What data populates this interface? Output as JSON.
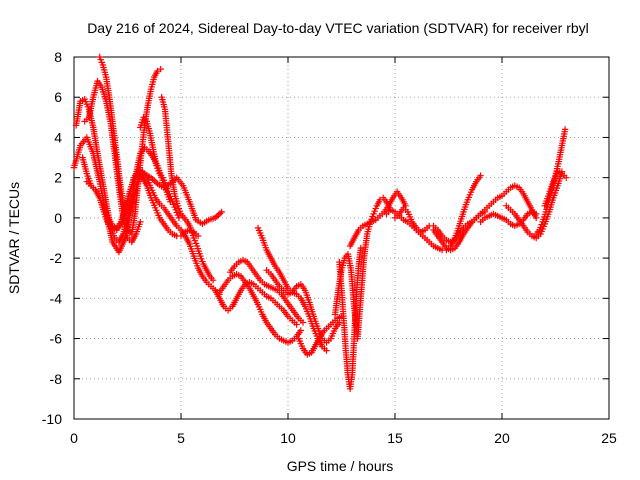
{
  "chart_data": {
    "type": "scatter",
    "title": "Day 216 of 2024, Sidereal Day-to-day VTEC variation (SDTVAR) for receiver rbyl",
    "xlabel": "GPS time / hours",
    "ylabel": "SDTVAR / TECUs",
    "xlim": [
      0,
      25
    ],
    "ylim": [
      -10,
      8
    ],
    "xticks": [
      0,
      5,
      10,
      15,
      20,
      25
    ],
    "yticks": [
      -10,
      -8,
      -6,
      -4,
      -2,
      0,
      2,
      4,
      6,
      8
    ],
    "grid": true,
    "marker": "plus",
    "color": "#ff0000",
    "series": [
      {
        "name": "track-1",
        "x": [
          0.0,
          0.3,
          0.6,
          0.9,
          1.2,
          1.5,
          1.8,
          2.1,
          2.4,
          2.7,
          3.0,
          3.3,
          3.6,
          3.9,
          4.2,
          4.5,
          4.8,
          5.1,
          5.4,
          5.7,
          6.0,
          6.3,
          6.6,
          6.9
        ],
        "y": [
          2.5,
          3.6,
          4.0,
          3.2,
          1.8,
          0.2,
          -1.2,
          -1.7,
          -1.0,
          0.6,
          1.8,
          2.2,
          2.0,
          1.7,
          1.5,
          1.7,
          2.0,
          1.6,
          0.8,
          -0.1,
          -0.3,
          -0.1,
          0.0,
          0.3
        ]
      },
      {
        "name": "track-2",
        "x": [
          0.1,
          0.3,
          0.5,
          0.7,
          0.9,
          1.1,
          1.3,
          1.5,
          1.7,
          1.9,
          2.1,
          2.3,
          2.5,
          2.7,
          2.9,
          3.1,
          3.3,
          3.5,
          3.7,
          3.9,
          4.1,
          4.3,
          4.5
        ],
        "y": [
          4.6,
          5.8,
          5.9,
          5.4,
          4.5,
          3.2,
          2.0,
          0.8,
          -0.4,
          -1.0,
          -1.2,
          -0.8,
          0.0,
          1.0,
          2.2,
          3.2,
          3.5,
          3.3,
          3.0,
          2.6,
          2.0,
          1.4,
          0.8
        ]
      },
      {
        "name": "track-3",
        "x": [
          0.4,
          0.6,
          0.8,
          1.0,
          1.2,
          1.4,
          1.6,
          1.8,
          2.0,
          2.2,
          2.4,
          2.6,
          2.8,
          3.0,
          3.2,
          3.4,
          3.6,
          3.8,
          4.0,
          4.2,
          4.4,
          4.6,
          4.8,
          5.0,
          5.2,
          5.4,
          5.6,
          5.8,
          6.0,
          6.2,
          6.4,
          6.6,
          6.8
        ],
        "y": [
          3.0,
          2.2,
          1.6,
          1.4,
          1.0,
          0.3,
          -0.3,
          -0.5,
          -0.6,
          -0.3,
          0.4,
          1.2,
          2.0,
          2.4,
          2.3,
          2.0,
          1.5,
          1.0,
          0.7,
          0.5,
          0.2,
          -0.1,
          -0.4,
          -0.6,
          -0.9,
          -1.3,
          -1.9,
          -2.5,
          -2.9,
          -3.2,
          -3.4,
          -3.6,
          -3.8
        ]
      },
      {
        "name": "track-4",
        "x": [
          0.6,
          0.8,
          1.0,
          1.2,
          1.4,
          1.6,
          1.8,
          2.0,
          2.2,
          2.4,
          2.6,
          2.8,
          3.0,
          3.2,
          3.4,
          3.6,
          3.8,
          4.0,
          4.2,
          4.4,
          4.6,
          4.8,
          5.0,
          5.2,
          5.4,
          5.6,
          5.8
        ],
        "y": [
          1.8,
          1.6,
          1.4,
          1.0,
          0.5,
          0.0,
          -0.4,
          -0.5,
          -0.2,
          0.5,
          1.3,
          1.9,
          2.2,
          2.0,
          1.6,
          1.0,
          0.5,
          0.0,
          -0.3,
          -0.6,
          -0.8,
          -0.9,
          -0.9,
          -0.7,
          -0.6,
          -0.7,
          -0.9
        ]
      },
      {
        "name": "track-5",
        "x": [
          0.5,
          0.7,
          0.9,
          1.1,
          1.3,
          1.5,
          1.7,
          1.9,
          2.1,
          2.3,
          2.5,
          2.7,
          2.9,
          3.1
        ],
        "y": [
          4.8,
          5.0,
          6.0,
          6.8,
          6.5,
          5.8,
          4.8,
          3.2,
          1.5,
          0.0,
          -1.0,
          -1.2,
          -0.8,
          -0.2
        ]
      },
      {
        "name": "track-6",
        "x": [
          1.2,
          1.35,
          1.5,
          1.65,
          1.8,
          1.95,
          2.1,
          2.25,
          2.4,
          2.55,
          2.7,
          2.85,
          3.0,
          3.15,
          3.3,
          3.45,
          3.6,
          3.75,
          3.9,
          4.05
        ],
        "y": [
          8.0,
          7.6,
          7.0,
          6.0,
          4.8,
          3.5,
          2.2,
          1.0,
          0.0,
          -0.6,
          -0.8,
          0.2,
          1.8,
          3.2,
          4.6,
          5.6,
          6.4,
          7.0,
          7.3,
          7.4
        ]
      },
      {
        "name": "track-7",
        "x": [
          3.1,
          3.25,
          3.4,
          3.55,
          3.7,
          3.85,
          4.0,
          4.15,
          4.3,
          4.45,
          4.6,
          4.75,
          4.9
        ],
        "y": [
          4.5,
          5.0,
          4.8,
          4.2,
          3.4,
          2.6,
          2.2,
          2.0,
          1.6,
          1.2,
          0.8,
          0.4,
          0.0
        ]
      },
      {
        "name": "track-8",
        "x": [
          4.1,
          4.25,
          4.4,
          4.55,
          4.7,
          4.85,
          5.0,
          5.15,
          5.3,
          5.45,
          5.6,
          5.75,
          5.9,
          6.05,
          6.2,
          6.35,
          6.5
        ],
        "y": [
          6.0,
          5.4,
          3.8,
          2.2,
          1.2,
          0.6,
          0.2,
          0.0,
          -0.2,
          -0.5,
          -1.0,
          -1.4,
          -1.9,
          -2.3,
          -2.6,
          -2.9,
          -3.1
        ]
      },
      {
        "name": "track-9",
        "x": [
          6.8,
          7.0,
          7.2,
          7.4,
          7.6,
          7.8,
          8.0,
          8.2,
          8.4,
          8.6,
          8.8,
          9.0,
          9.2,
          9.4,
          9.6,
          9.8,
          10.0,
          10.2,
          10.4,
          10.6
        ],
        "y": [
          -3.7,
          -3.4,
          -3.1,
          -2.9,
          -2.8,
          -2.9,
          -3.2,
          -3.5,
          -3.9,
          -4.3,
          -4.8,
          -5.2,
          -5.5,
          -5.8,
          -6.0,
          -6.1,
          -6.2,
          -6.1,
          -5.9,
          -5.6
        ]
      },
      {
        "name": "track-10",
        "x": [
          6.6,
          6.8,
          7.0,
          7.2,
          7.4,
          7.6,
          7.8,
          8.0,
          8.2,
          8.4,
          8.6,
          8.8,
          9.0,
          9.2,
          9.4,
          9.6,
          9.8,
          10.0,
          10.2,
          10.4
        ],
        "y": [
          -3.6,
          -4.0,
          -4.4,
          -4.6,
          -4.4,
          -4.0,
          -3.6,
          -3.3,
          -3.2,
          -3.3,
          -3.5,
          -3.7,
          -3.9,
          -4.0,
          -4.2,
          -4.4,
          -4.6,
          -4.9,
          -5.1,
          -5.3
        ]
      },
      {
        "name": "track-11",
        "x": [
          7.3,
          7.5,
          7.7,
          7.9,
          8.1,
          8.3,
          8.5,
          8.7,
          8.9,
          9.1,
          9.3,
          9.5,
          9.7,
          9.9,
          10.1,
          10.3,
          10.5,
          10.7
        ],
        "y": [
          -2.7,
          -2.4,
          -2.2,
          -2.1,
          -2.2,
          -2.5,
          -2.8,
          -3.1,
          -3.3,
          -3.4,
          -3.5,
          -3.6,
          -3.8,
          -4.1,
          -4.4,
          -4.7,
          -5.0,
          -5.2
        ]
      },
      {
        "name": "track-12",
        "x": [
          8.6,
          8.8,
          9.0,
          9.2,
          9.4,
          9.6,
          9.8,
          10.0,
          10.2,
          10.4,
          10.6,
          10.8,
          11.0,
          11.2,
          11.4,
          11.6,
          11.8
        ],
        "y": [
          -0.5,
          -1.0,
          -1.6,
          -2.0,
          -2.4,
          -2.7,
          -3.1,
          -3.5,
          -3.7,
          -3.8,
          -4.0,
          -4.4,
          -4.9,
          -5.5,
          -6.0,
          -6.4,
          -6.6
        ]
      },
      {
        "name": "track-13",
        "x": [
          9.0,
          9.2,
          9.4,
          9.6,
          9.8,
          10.0,
          10.2,
          10.4,
          10.6,
          10.8,
          11.0,
          11.2,
          11.4,
          11.6,
          11.8,
          12.0,
          12.2,
          12.4
        ],
        "y": [
          -2.6,
          -2.8,
          -3.1,
          -3.4,
          -3.6,
          -3.8,
          -3.7,
          -3.4,
          -3.3,
          -3.6,
          -4.2,
          -4.9,
          -5.5,
          -6.0,
          -6.2,
          -6.0,
          -5.5,
          -5.2
        ]
      },
      {
        "name": "track-14",
        "x": [
          10.5,
          10.7,
          10.9,
          11.1,
          11.3,
          11.5,
          11.7,
          11.9,
          12.1,
          12.3,
          12.5
        ],
        "y": [
          -6.0,
          -6.5,
          -6.8,
          -6.7,
          -6.3,
          -5.9,
          -5.6,
          -5.4,
          -5.2,
          -5.0,
          -4.9
        ]
      },
      {
        "name": "track-15",
        "x": [
          12.2,
          12.35,
          12.5,
          12.65,
          12.8,
          12.95,
          13.1,
          13.25,
          13.4,
          13.55,
          13.7,
          13.85,
          14.0,
          14.15,
          14.3,
          14.45,
          14.6,
          14.75
        ],
        "y": [
          -4.8,
          -3.6,
          -2.6,
          -2.0,
          -1.8,
          -2.6,
          -4.5,
          -6.0,
          -4.0,
          -2.0,
          -0.8,
          -0.2,
          0.2,
          0.6,
          0.9,
          1.0,
          0.8,
          0.5
        ]
      },
      {
        "name": "track-16",
        "x": [
          12.4,
          12.5,
          12.6,
          12.7,
          12.8,
          12.9,
          13.0,
          13.1,
          13.2,
          13.3,
          13.4
        ],
        "y": [
          -2.2,
          -3.5,
          -5.0,
          -6.6,
          -7.8,
          -8.5,
          -7.8,
          -5.8,
          -3.8,
          -2.4,
          -1.5
        ]
      },
      {
        "name": "track-17",
        "x": [
          12.9,
          13.1,
          13.3,
          13.5,
          13.7,
          13.9,
          14.1,
          14.3,
          14.5,
          14.7,
          14.9,
          15.1,
          15.3,
          15.5
        ],
        "y": [
          -1.4,
          -1.0,
          -0.6,
          -0.4,
          -0.3,
          -0.2,
          -0.1,
          0.1,
          0.3,
          0.6,
          1.0,
          1.3,
          1.0,
          0.6
        ]
      },
      {
        "name": "track-18",
        "x": [
          14.6,
          14.8,
          15.0,
          15.2,
          15.4,
          15.6,
          15.8,
          16.0,
          16.2,
          16.4,
          16.6,
          16.8,
          17.0,
          17.2,
          17.4,
          17.6,
          17.8,
          18.0,
          18.2,
          18.4,
          18.6,
          18.8,
          19.0
        ],
        "y": [
          0.2,
          0.4,
          0.3,
          0.1,
          -0.1,
          -0.2,
          -0.4,
          -0.6,
          -0.8,
          -1.0,
          -1.2,
          -1.4,
          -1.5,
          -1.6,
          -1.6,
          -1.4,
          -1.0,
          -0.4,
          0.3,
          0.9,
          1.4,
          1.8,
          2.1
        ]
      },
      {
        "name": "track-19",
        "x": [
          15.0,
          15.2,
          15.4,
          15.6,
          15.8,
          16.0,
          16.2,
          16.4,
          16.6,
          16.8,
          17.0,
          17.2,
          17.4,
          17.6,
          17.8,
          18.0,
          18.2,
          18.4,
          18.6,
          18.8,
          19.0,
          19.2
        ],
        "y": [
          0.0,
          0.2,
          0.5,
          0.3,
          -0.2,
          -0.5,
          -0.7,
          -0.6,
          -0.4,
          -0.4,
          -0.6,
          -0.9,
          -1.1,
          -1.2,
          -1.1,
          -0.8,
          -0.5,
          -0.3,
          -0.2,
          0.0,
          0.2,
          0.3
        ]
      },
      {
        "name": "track-20",
        "x": [
          16.8,
          17.0,
          17.2,
          17.4,
          17.6,
          17.8,
          18.0,
          18.2,
          18.4,
          18.6,
          18.8,
          19.0,
          19.2,
          19.4,
          19.6,
          19.8,
          20.0,
          20.2,
          20.4,
          20.6,
          20.8,
          21.0,
          21.2,
          21.4,
          21.6
        ],
        "y": [
          -0.6,
          -0.9,
          -1.2,
          -1.5,
          -1.6,
          -1.5,
          -1.2,
          -0.8,
          -0.5,
          -0.2,
          0.0,
          0.2,
          0.4,
          0.6,
          0.8,
          1.0,
          1.1,
          1.3,
          1.5,
          1.6,
          1.5,
          1.2,
          0.8,
          0.4,
          0.0
        ]
      },
      {
        "name": "track-21",
        "x": [
          19.0,
          19.2,
          19.4,
          19.6,
          19.8,
          20.0,
          20.2,
          20.4,
          20.6,
          20.8,
          21.0,
          21.2,
          21.4,
          21.6
        ],
        "y": [
          -0.2,
          0.0,
          0.1,
          0.2,
          0.1,
          0.0,
          -0.1,
          -0.3,
          -0.4,
          -0.3,
          -0.1,
          0.2,
          0.3,
          0.2
        ]
      },
      {
        "name": "track-22",
        "x": [
          20.2,
          20.4,
          20.6,
          20.8,
          21.0,
          21.2,
          21.4,
          21.6,
          21.8,
          22.0,
          22.2,
          22.4,
          22.6,
          22.8
        ],
        "y": [
          0.6,
          0.4,
          0.2,
          -0.1,
          -0.4,
          -0.7,
          -0.9,
          -1.0,
          -0.8,
          -0.3,
          0.3,
          1.0,
          1.6,
          2.3
        ]
      },
      {
        "name": "track-23",
        "x": [
          21.6,
          21.75,
          21.9,
          22.05,
          22.2,
          22.35,
          22.5,
          22.65,
          22.8,
          22.95
        ],
        "y": [
          -0.8,
          -0.6,
          -0.2,
          0.3,
          0.9,
          1.5,
          2.1,
          2.8,
          3.6,
          4.4
        ]
      },
      {
        "name": "track-24",
        "x": [
          22.0,
          22.2,
          22.4,
          22.6,
          22.8,
          23.0
        ],
        "y": [
          0.6,
          1.2,
          1.8,
          2.3,
          2.2,
          2.0
        ]
      }
    ]
  }
}
